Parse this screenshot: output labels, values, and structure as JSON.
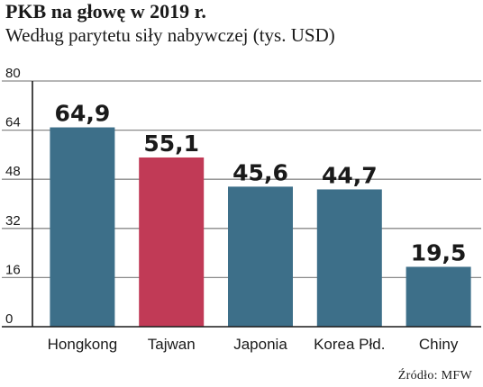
{
  "chart_data": {
    "type": "bar",
    "title": "PKB na głowę w 2019 r.",
    "subtitle": "Według parytetu siły nabywczej (tys. USD)",
    "categories": [
      "Hongkong",
      "Tajwan",
      "Japonia",
      "Korea Płd.",
      "Chiny"
    ],
    "values": [
      64.9,
      55.1,
      45.6,
      44.7,
      19.5
    ],
    "value_labels": [
      "64,9",
      "55,1",
      "45,6",
      "44,7",
      "19,5"
    ],
    "ylim": [
      0,
      80
    ],
    "yticks": [
      0,
      16,
      32,
      48,
      64,
      80
    ],
    "grid": true,
    "xlabel": "",
    "ylabel": "",
    "source": "Źródło: MFW",
    "colors": {
      "default": "#3d6f89",
      "highlight": "#c13a56",
      "grid": "#8a8a8a",
      "axis": "#1a1a1a"
    },
    "highlight_index": 1
  }
}
